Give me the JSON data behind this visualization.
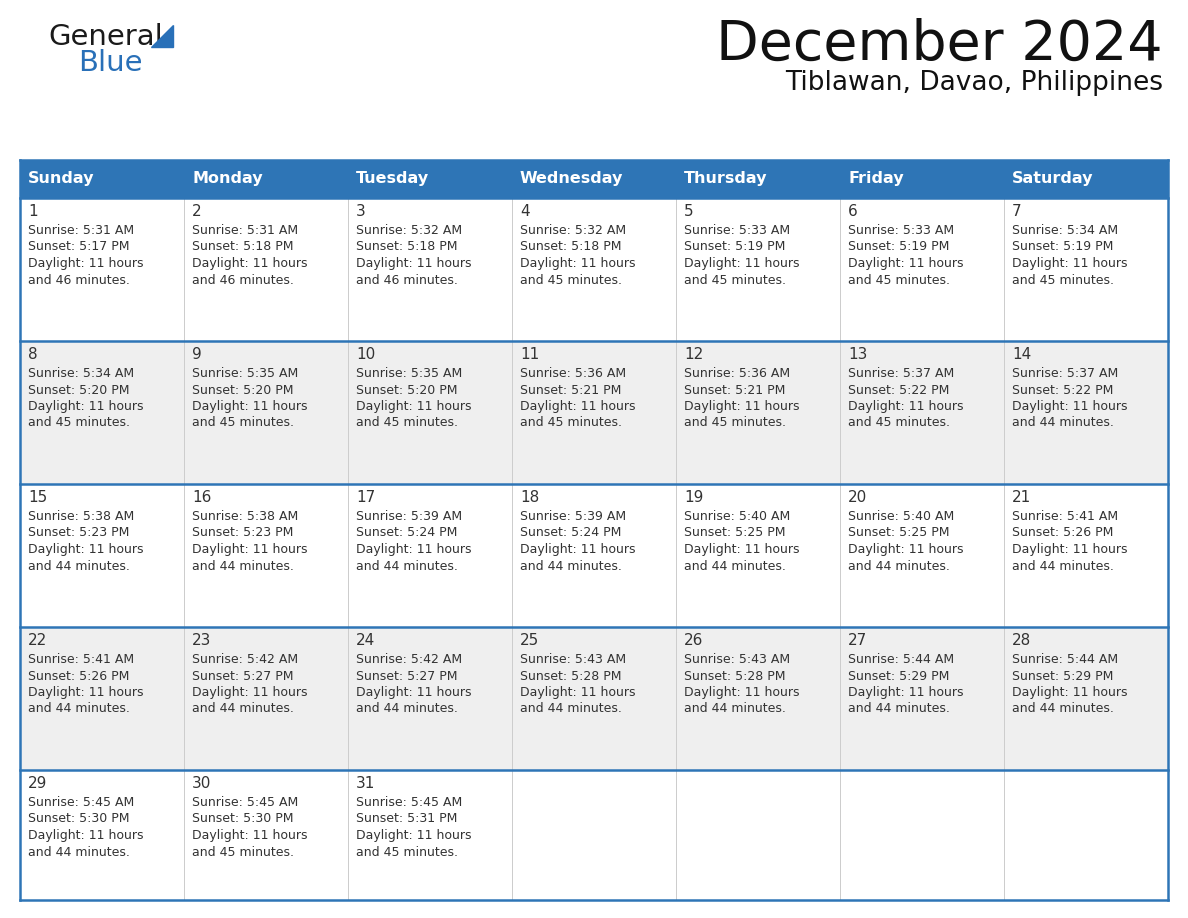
{
  "title": "December 2024",
  "subtitle": "Tiblawan, Davao, Philippines",
  "header_bg": "#2E75B6",
  "header_text_color": "#FFFFFF",
  "row_bg_odd": "#FFFFFF",
  "row_bg_even": "#EFEFEF",
  "last_row_bg": "#EFEFEF",
  "border_color": "#2E75B6",
  "divider_color": "#2E75B6",
  "text_color": "#333333",
  "day_num_color": "#333333",
  "logo_color1": "#1A1A1A",
  "logo_color2": "#2970B8",
  "logo_triangle_color": "#2970B8",
  "day_headers": [
    "Sunday",
    "Monday",
    "Tuesday",
    "Wednesday",
    "Thursday",
    "Friday",
    "Saturday"
  ],
  "weeks": [
    [
      {
        "day": 1,
        "sunrise": "5:31 AM",
        "sunset": "5:17 PM",
        "daylight_hours": 11,
        "daylight_minutes": "46"
      },
      {
        "day": 2,
        "sunrise": "5:31 AM",
        "sunset": "5:18 PM",
        "daylight_hours": 11,
        "daylight_minutes": "46"
      },
      {
        "day": 3,
        "sunrise": "5:32 AM",
        "sunset": "5:18 PM",
        "daylight_hours": 11,
        "daylight_minutes": "46"
      },
      {
        "day": 4,
        "sunrise": "5:32 AM",
        "sunset": "5:18 PM",
        "daylight_hours": 11,
        "daylight_minutes": "45"
      },
      {
        "day": 5,
        "sunrise": "5:33 AM",
        "sunset": "5:19 PM",
        "daylight_hours": 11,
        "daylight_minutes": "45"
      },
      {
        "day": 6,
        "sunrise": "5:33 AM",
        "sunset": "5:19 PM",
        "daylight_hours": 11,
        "daylight_minutes": "45"
      },
      {
        "day": 7,
        "sunrise": "5:34 AM",
        "sunset": "5:19 PM",
        "daylight_hours": 11,
        "daylight_minutes": "45"
      }
    ],
    [
      {
        "day": 8,
        "sunrise": "5:34 AM",
        "sunset": "5:20 PM",
        "daylight_hours": 11,
        "daylight_minutes": "45"
      },
      {
        "day": 9,
        "sunrise": "5:35 AM",
        "sunset": "5:20 PM",
        "daylight_hours": 11,
        "daylight_minutes": "45"
      },
      {
        "day": 10,
        "sunrise": "5:35 AM",
        "sunset": "5:20 PM",
        "daylight_hours": 11,
        "daylight_minutes": "45"
      },
      {
        "day": 11,
        "sunrise": "5:36 AM",
        "sunset": "5:21 PM",
        "daylight_hours": 11,
        "daylight_minutes": "45"
      },
      {
        "day": 12,
        "sunrise": "5:36 AM",
        "sunset": "5:21 PM",
        "daylight_hours": 11,
        "daylight_minutes": "45"
      },
      {
        "day": 13,
        "sunrise": "5:37 AM",
        "sunset": "5:22 PM",
        "daylight_hours": 11,
        "daylight_minutes": "45"
      },
      {
        "day": 14,
        "sunrise": "5:37 AM",
        "sunset": "5:22 PM",
        "daylight_hours": 11,
        "daylight_minutes": "44"
      }
    ],
    [
      {
        "day": 15,
        "sunrise": "5:38 AM",
        "sunset": "5:23 PM",
        "daylight_hours": 11,
        "daylight_minutes": "44"
      },
      {
        "day": 16,
        "sunrise": "5:38 AM",
        "sunset": "5:23 PM",
        "daylight_hours": 11,
        "daylight_minutes": "44"
      },
      {
        "day": 17,
        "sunrise": "5:39 AM",
        "sunset": "5:24 PM",
        "daylight_hours": 11,
        "daylight_minutes": "44"
      },
      {
        "day": 18,
        "sunrise": "5:39 AM",
        "sunset": "5:24 PM",
        "daylight_hours": 11,
        "daylight_minutes": "44"
      },
      {
        "day": 19,
        "sunrise": "5:40 AM",
        "sunset": "5:25 PM",
        "daylight_hours": 11,
        "daylight_minutes": "44"
      },
      {
        "day": 20,
        "sunrise": "5:40 AM",
        "sunset": "5:25 PM",
        "daylight_hours": 11,
        "daylight_minutes": "44"
      },
      {
        "day": 21,
        "sunrise": "5:41 AM",
        "sunset": "5:26 PM",
        "daylight_hours": 11,
        "daylight_minutes": "44"
      }
    ],
    [
      {
        "day": 22,
        "sunrise": "5:41 AM",
        "sunset": "5:26 PM",
        "daylight_hours": 11,
        "daylight_minutes": "44"
      },
      {
        "day": 23,
        "sunrise": "5:42 AM",
        "sunset": "5:27 PM",
        "daylight_hours": 11,
        "daylight_minutes": "44"
      },
      {
        "day": 24,
        "sunrise": "5:42 AM",
        "sunset": "5:27 PM",
        "daylight_hours": 11,
        "daylight_minutes": "44"
      },
      {
        "day": 25,
        "sunrise": "5:43 AM",
        "sunset": "5:28 PM",
        "daylight_hours": 11,
        "daylight_minutes": "44"
      },
      {
        "day": 26,
        "sunrise": "5:43 AM",
        "sunset": "5:28 PM",
        "daylight_hours": 11,
        "daylight_minutes": "44"
      },
      {
        "day": 27,
        "sunrise": "5:44 AM",
        "sunset": "5:29 PM",
        "daylight_hours": 11,
        "daylight_minutes": "44"
      },
      {
        "day": 28,
        "sunrise": "5:44 AM",
        "sunset": "5:29 PM",
        "daylight_hours": 11,
        "daylight_minutes": "44"
      }
    ],
    [
      {
        "day": 29,
        "sunrise": "5:45 AM",
        "sunset": "5:30 PM",
        "daylight_hours": 11,
        "daylight_minutes": "44"
      },
      {
        "day": 30,
        "sunrise": "5:45 AM",
        "sunset": "5:30 PM",
        "daylight_hours": 11,
        "daylight_minutes": "45"
      },
      {
        "day": 31,
        "sunrise": "5:45 AM",
        "sunset": "5:31 PM",
        "daylight_hours": 11,
        "daylight_minutes": "45"
      },
      null,
      null,
      null,
      null
    ]
  ]
}
